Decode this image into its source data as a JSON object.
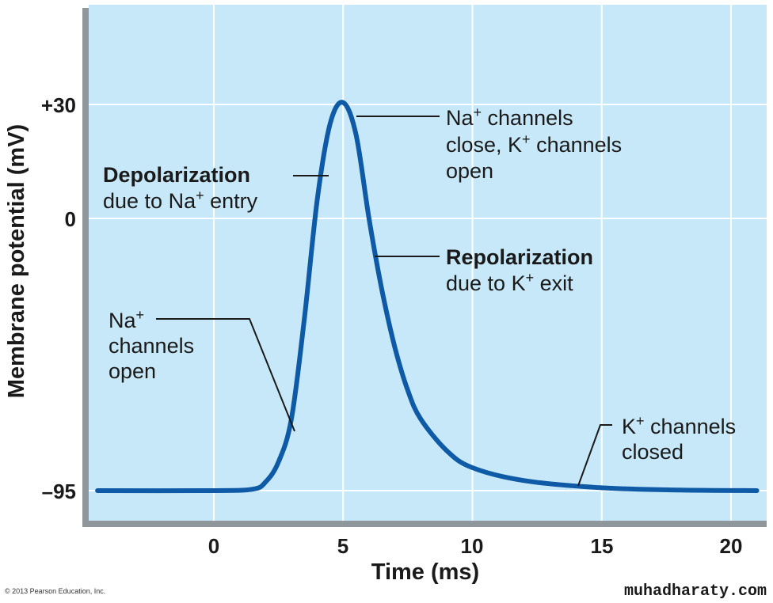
{
  "colors": {
    "plot_background": "#c7e8f8",
    "grid": "#ffffff",
    "curve": "#0f5aa6",
    "frame": "#808890",
    "text": "#1a1a1a"
  },
  "chart_data": {
    "type": "line",
    "xlabel": "Time (ms)",
    "ylabel": "Membrane potential (mV)",
    "xlim": [
      -4.5,
      21
    ],
    "x_ticks": [
      0,
      5,
      10,
      15,
      20
    ],
    "x_tick_labels": [
      "0",
      "5",
      "10",
      "15",
      "20"
    ],
    "y_ticks": [
      -95,
      0,
      30
    ],
    "y_tick_labels": [
      "–95",
      "0",
      "+30"
    ],
    "grid": true,
    "series": [
      {
        "x": [
          -4.5,
          0,
          1.5,
          2,
          2.5,
          3,
          3.5,
          4,
          4.5,
          5,
          5.5,
          6,
          6.5,
          7,
          7.5,
          8,
          9,
          10,
          12,
          15,
          18,
          21
        ],
        "y": [
          -95,
          -95,
          -94.5,
          -92,
          -85,
          -70,
          -35,
          5,
          25,
          30.5,
          22,
          0,
          -25,
          -45,
          -60,
          -70,
          -81,
          -87,
          -91.5,
          -94,
          -94.8,
          -95
        ]
      }
    ],
    "annotations": {
      "depolarization": {
        "title": "Depolarization",
        "line2_pre": "due to Na",
        "line2_sup": "+",
        "line2_post": " entry"
      },
      "na_close": {
        "l1_pre": "Na",
        "l1_sup": "+",
        "l1_post": " channels",
        "l2_pre": "close, K",
        "l2_sup": "+",
        "l2_post": " channels",
        "l3": "open"
      },
      "repolarization": {
        "title": "Repolarization",
        "line2_pre": "due to K",
        "line2_sup": "+",
        "line2_post": " exit"
      },
      "na_open": {
        "l1_pre": "Na",
        "l1_sup": "+",
        "l2": "channels",
        "l3": "open"
      },
      "k_closed": {
        "l1_pre": "K",
        "l1_sup": "+",
        "l1_post": " channels",
        "l2": "closed"
      }
    }
  },
  "footer": {
    "credit": "© 2013 Pearson Education, Inc.",
    "watermark": "muhadharaty.com"
  }
}
